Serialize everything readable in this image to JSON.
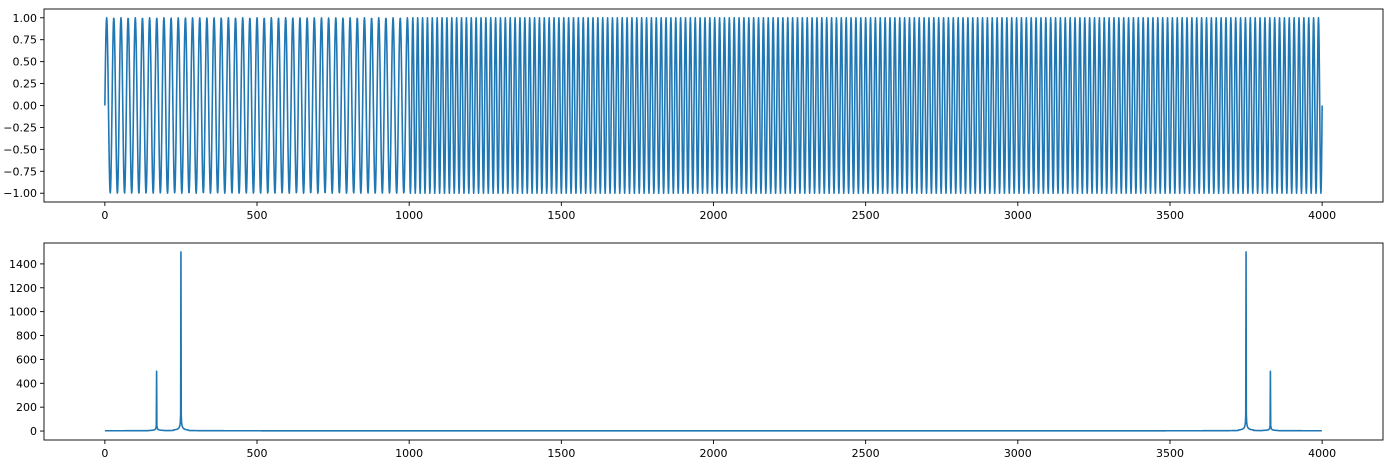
{
  "figure": {
    "background": "#ffffff"
  },
  "chart_data": [
    {
      "type": "line",
      "title": "",
      "xlabel": "",
      "ylabel": "",
      "xlim": [
        -200,
        4200
      ],
      "ylim": [
        -1.1,
        1.1
      ],
      "x_ticks": [
        0,
        500,
        1000,
        1500,
        2000,
        2500,
        3000,
        3500,
        4000
      ],
      "x_tick_labels": [
        "0",
        "500",
        "1000",
        "1500",
        "2000",
        "2500",
        "3000",
        "3500",
        "4000"
      ],
      "y_ticks": [
        1.0,
        0.75,
        0.5,
        0.25,
        0.0,
        -0.25,
        -0.5,
        -0.75,
        -1.0
      ],
      "y_tick_labels": [
        "1.00",
        "0.75",
        "0.50",
        "0.25",
        "0.00",
        "−0.25",
        "−0.50",
        "−0.75",
        "−1.00"
      ],
      "grid": false,
      "color": "#1f77b4",
      "series": [
        {
          "kind": "piecewise_sine",
          "n_samples": 4000,
          "segments": [
            {
              "start": 0,
              "end": 1000,
              "cycles": 42.5
            },
            {
              "start": 1000,
              "end": 4000,
              "cycles": 187.5
            }
          ],
          "amplitude": 1.0,
          "phase_start": 0
        }
      ]
    },
    {
      "type": "line",
      "title": "",
      "xlabel": "",
      "ylabel": "",
      "xlim": [
        -200,
        4200
      ],
      "ylim": [
        -75,
        1575
      ],
      "x_ticks": [
        0,
        500,
        1000,
        1500,
        2000,
        2500,
        3000,
        3500,
        4000
      ],
      "x_tick_labels": [
        "0",
        "500",
        "1000",
        "1500",
        "2000",
        "2500",
        "3000",
        "3500",
        "4000"
      ],
      "y_ticks": [
        0,
        200,
        400,
        600,
        800,
        1000,
        1200,
        1400
      ],
      "y_tick_labels": [
        "0",
        "200",
        "400",
        "600",
        "800",
        "1000",
        "1200",
        "1400"
      ],
      "grid": false,
      "color": "#1f77b4",
      "series": [
        {
          "kind": "magnitude_spectrum",
          "n_samples": 4000,
          "peaks": [
            {
              "x": 170,
              "y": 500
            },
            {
              "x": 250,
              "y": 1500
            },
            {
              "x": 3750,
              "y": 1500
            },
            {
              "x": 3830,
              "y": 500
            }
          ],
          "baseline": 2
        }
      ]
    }
  ]
}
